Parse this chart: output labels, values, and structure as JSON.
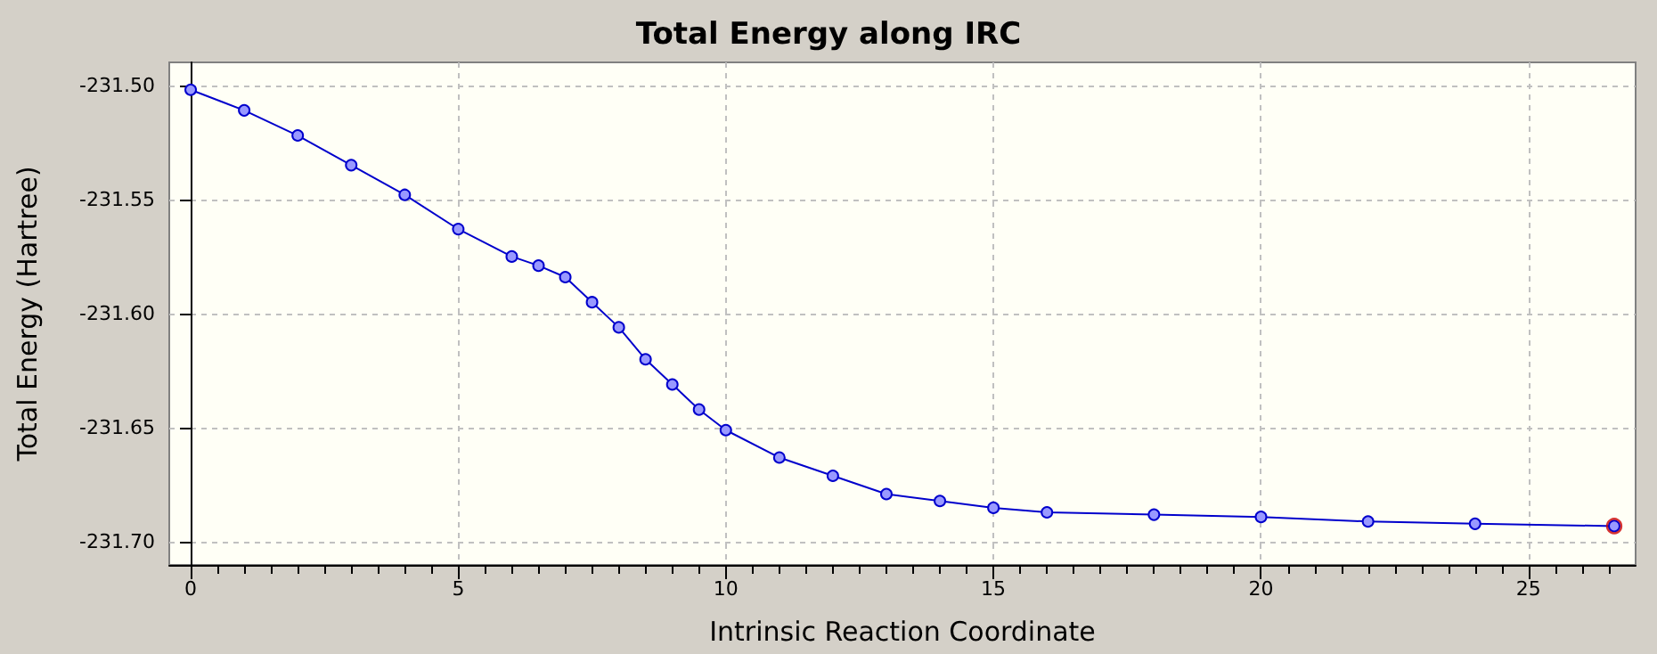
{
  "chart_data": {
    "type": "line",
    "title": "Total Energy along IRC",
    "xlabel": "Intrinsic Reaction Coordinate",
    "ylabel": "Total Energy (Hartree)",
    "xlim": [
      -0.4,
      27.0
    ],
    "xticks": [
      0,
      5,
      10,
      15,
      20,
      25
    ],
    "ylim": [
      -231.71,
      -231.49
    ],
    "yticks": [
      {
        "value": -231.7,
        "label": "-231.70"
      },
      {
        "value": -231.65,
        "label": "-231.65"
      },
      {
        "value": -231.6,
        "label": "-231.60"
      },
      {
        "value": -231.55,
        "label": "-231.55"
      },
      {
        "value": -231.5,
        "label": "-231.50"
      }
    ],
    "grid": true,
    "marker": "circle",
    "line_style": "solid",
    "series": [
      {
        "color": "#0000cc",
        "x": [
          0,
          1,
          2,
          3,
          4,
          5,
          6,
          6.5,
          7,
          7.5,
          8,
          8.5,
          9,
          9.5,
          10,
          11,
          12,
          13,
          14,
          15,
          16,
          18,
          20,
          22,
          24,
          26.6
        ],
        "values": [
          -231.502,
          -231.511,
          -231.522,
          -231.535,
          -231.548,
          -231.563,
          -231.575,
          -231.579,
          -231.584,
          -231.595,
          -231.606,
          -231.62,
          -231.631,
          -231.642,
          -231.651,
          -231.663,
          -231.671,
          -231.679,
          -231.682,
          -231.685,
          -231.687,
          -231.688,
          -231.689,
          -231.691,
          -231.692,
          -231.693
        ]
      },
      {
        "type": "scatter",
        "color": "#cc0000",
        "x": [
          26.6
        ],
        "values": [
          -231.693
        ]
      }
    ]
  }
}
